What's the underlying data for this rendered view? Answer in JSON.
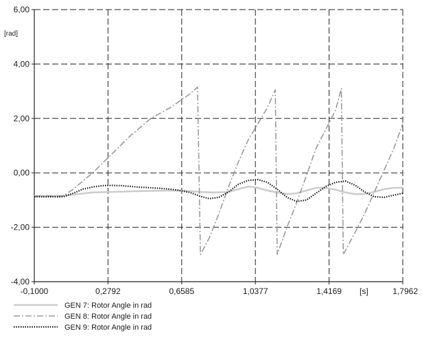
{
  "chart_data": {
    "type": "line",
    "title": "",
    "xlabel": "",
    "ylabel": "",
    "x_unit_label": "[s]",
    "y_unit_label": "[rad]",
    "xlim": [
      -0.1,
      1.7962
    ],
    "ylim": [
      -4.0,
      6.0
    ],
    "x_ticks": [
      -0.1,
      0.2792,
      0.6585,
      1.0377,
      1.4169,
      1.7962
    ],
    "x_tick_labels": [
      "-0,1000",
      "0,2792",
      "0,6585",
      "1,0377",
      "1,4169",
      "1,7962"
    ],
    "y_ticks": [
      -4.0,
      -2.0,
      0.0,
      2.0,
      4.0,
      6.0
    ],
    "y_tick_labels": [
      "-4,00",
      "-2,00",
      "0,00",
      "2,00",
      "4,00",
      "6,00"
    ],
    "grid": true,
    "legend_position": "bottom-left",
    "series": [
      {
        "name": "GEN 7: Rotor Angle in rad",
        "style": "solid",
        "color": "#cccccc",
        "x": [
          -0.1,
          0.0,
          0.05,
          0.1,
          0.2,
          0.3,
          0.4,
          0.5,
          0.6,
          0.68,
          0.75,
          0.82,
          0.9,
          0.95,
          1.0,
          1.05,
          1.1,
          1.15,
          1.2,
          1.25,
          1.3,
          1.35,
          1.4,
          1.45,
          1.5,
          1.55,
          1.6,
          1.65,
          1.7,
          1.75,
          1.7962
        ],
        "y": [
          -0.85,
          -0.85,
          -0.84,
          -0.8,
          -0.72,
          -0.7,
          -0.68,
          -0.66,
          -0.65,
          -0.66,
          -0.7,
          -0.72,
          -0.7,
          -0.6,
          -0.5,
          -0.55,
          -0.65,
          -0.72,
          -0.78,
          -0.75,
          -0.65,
          -0.55,
          -0.55,
          -0.62,
          -0.72,
          -0.78,
          -0.78,
          -0.7,
          -0.6,
          -0.55,
          -0.55
        ]
      },
      {
        "name": "GEN 8: Rotor Angle in rad",
        "style": "dashdot",
        "color": "#9a9a9a",
        "x": [
          -0.1,
          0.0,
          0.05,
          0.1,
          0.15,
          0.2,
          0.25,
          0.3,
          0.35,
          0.4,
          0.45,
          0.5,
          0.55,
          0.6,
          0.65,
          0.7,
          0.74,
          0.755,
          0.8,
          0.85,
          0.9,
          0.95,
          1.0,
          1.05,
          1.1,
          1.14,
          1.15,
          1.2,
          1.25,
          1.3,
          1.35,
          1.4,
          1.45,
          1.48,
          1.49,
          1.55,
          1.6,
          1.65,
          1.7,
          1.75,
          1.7962
        ],
        "y": [
          -0.85,
          -0.85,
          -0.85,
          -0.6,
          -0.3,
          0.0,
          0.35,
          0.7,
          1.05,
          1.4,
          1.7,
          2.0,
          2.2,
          2.4,
          2.65,
          2.9,
          3.15,
          -3.0,
          -2.4,
          -1.5,
          -0.5,
          0.4,
          1.2,
          1.8,
          2.4,
          3.05,
          -3.0,
          -2.0,
          -1.1,
          -0.1,
          0.9,
          1.6,
          2.3,
          3.1,
          -3.0,
          -2.2,
          -1.5,
          -0.7,
          0.1,
          0.9,
          1.8
        ]
      },
      {
        "name": "GEN 9: Rotor Angle in rad",
        "style": "dotted",
        "color": "#1a1a1a",
        "x": [
          -0.1,
          0.0,
          0.05,
          0.1,
          0.15,
          0.2,
          0.25,
          0.3,
          0.35,
          0.4,
          0.45,
          0.5,
          0.55,
          0.6,
          0.65,
          0.7,
          0.75,
          0.8,
          0.85,
          0.9,
          0.95,
          1.0,
          1.05,
          1.1,
          1.15,
          1.2,
          1.25,
          1.3,
          1.35,
          1.4,
          1.45,
          1.5,
          1.55,
          1.6,
          1.65,
          1.7,
          1.75,
          1.7962
        ],
        "y": [
          -0.88,
          -0.88,
          -0.88,
          -0.75,
          -0.6,
          -0.52,
          -0.47,
          -0.46,
          -0.47,
          -0.5,
          -0.53,
          -0.55,
          -0.57,
          -0.6,
          -0.65,
          -0.72,
          -0.85,
          -0.95,
          -0.9,
          -0.7,
          -0.42,
          -0.28,
          -0.25,
          -0.35,
          -0.6,
          -0.9,
          -1.05,
          -1.0,
          -0.75,
          -0.5,
          -0.35,
          -0.3,
          -0.45,
          -0.7,
          -0.88,
          -0.9,
          -0.82,
          -0.75
        ]
      }
    ]
  }
}
